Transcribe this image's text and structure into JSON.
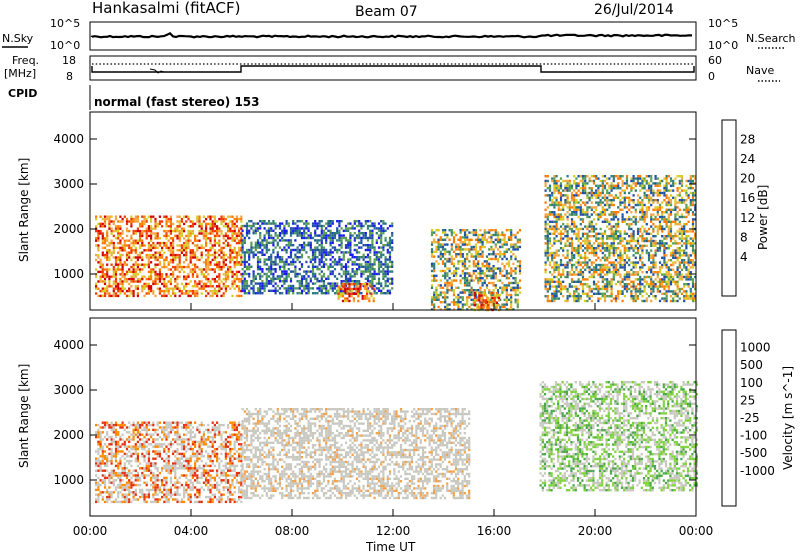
{
  "header": {
    "station": "Hankasalmi (fitACF)",
    "beam": "Beam 07",
    "date": "26/Jul/2014"
  },
  "status_panels": {
    "nsky_label": "N.Sky",
    "nsearch_label": "N.Search",
    "noise_ticks": [
      "10^5",
      "10^0"
    ],
    "freq_label_top": "Freq.",
    "freq_label_bottom": "[MHz]",
    "freq_ticks": [
      "18",
      "8"
    ],
    "nave_label": "Nave",
    "nave_ticks": [
      "60",
      "0"
    ],
    "cpid_label": "CPID",
    "cpid_text": "normal (fast stereo) 153"
  },
  "x_axis": {
    "label": "Time UT",
    "ticks": [
      "00:00",
      "04:00",
      "08:00",
      "12:00",
      "16:00",
      "20:00",
      "00:00"
    ]
  },
  "chart_data": [
    {
      "type": "heatmap",
      "quantity": "Power",
      "ylabel": "Slant Range [km]",
      "yticks": [
        1000,
        2000,
        3000,
        4000
      ],
      "ylim": [
        200,
        4600
      ],
      "xlim_hours": [
        0,
        24
      ],
      "colorbar_label": "Power [dB]",
      "colorbar_ticks": [
        "28",
        "24",
        "20",
        "16",
        "12",
        "8",
        "4"
      ],
      "colorbar_colors": [
        "#d40000",
        "#f23a00",
        "#ff7a00",
        "#f4a640",
        "#d8cc24",
        "#5aa050",
        "#2d7a7a",
        "#1f4fa6",
        "#1a1aee"
      ],
      "echo_regions": [
        {
          "t0": 0.2,
          "t1": 6.0,
          "r0": 500,
          "r1": 2300,
          "level": "strong"
        },
        {
          "t0": 6.0,
          "t1": 12.0,
          "r0": 600,
          "r1": 2200,
          "level": "weak"
        },
        {
          "t0": 9.8,
          "t1": 11.2,
          "r0": 400,
          "r1": 800,
          "level": "strong"
        },
        {
          "t0": 13.5,
          "t1": 17.0,
          "r0": 200,
          "r1": 2000,
          "level": "medium"
        },
        {
          "t0": 15.2,
          "t1": 16.2,
          "r0": 200,
          "r1": 600,
          "level": "strong"
        },
        {
          "t0": 18.0,
          "t1": 24.0,
          "r0": 400,
          "r1": 3200,
          "level": "medium"
        }
      ]
    },
    {
      "type": "heatmap",
      "quantity": "Velocity",
      "ylabel": "Slant Range [km]",
      "yticks": [
        1000,
        2000,
        3000,
        4000
      ],
      "ylim": [
        200,
        4600
      ],
      "xlim_hours": [
        0,
        24
      ],
      "colorbar_label": "Velocity [m s^-1]",
      "colorbar_ticks": [
        "1000",
        "500",
        "100",
        "25",
        "-25",
        "-100",
        "-500",
        "-1000"
      ],
      "colorbar_colors": [
        "#1a2fa8",
        "#2a5db8",
        "#2a7a5a",
        "#4aa84a",
        "#7ed23a",
        "#c8c8c0",
        "#f2a24a",
        "#ff8a00",
        "#e83010",
        "#ee0000"
      ],
      "echo_regions": [
        {
          "t0": 0.2,
          "t1": 6.0,
          "r0": 500,
          "r1": 2300,
          "level": "mixed"
        },
        {
          "t0": 6.0,
          "t1": 15.0,
          "r0": 600,
          "r1": 2600,
          "level": "ground"
        },
        {
          "t0": 17.8,
          "t1": 24.0,
          "r0": 800,
          "r1": 3200,
          "level": "positive"
        }
      ]
    }
  ]
}
